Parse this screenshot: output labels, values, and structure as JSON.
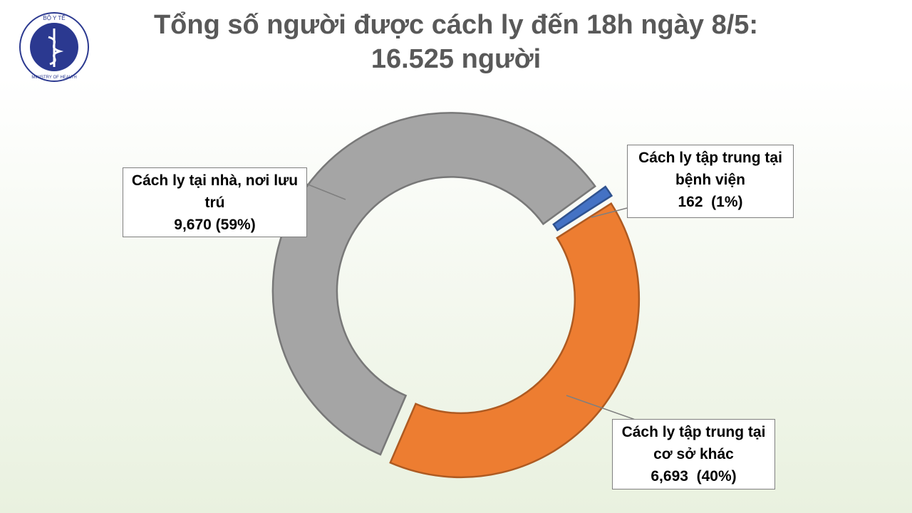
{
  "logo": {
    "top_text": "BỘ Y TẾ",
    "bottom_text": "MINISTRY OF HEALTH"
  },
  "chart_data": {
    "type": "donut",
    "title": "Tổng số người được cách ly đến 18h ngày 8/5:",
    "subtitle": "16.525 người",
    "categories": [
      "Cách ly tập trung tại bệnh viện",
      "Cách ly tập trung tại cơ sở khác",
      "Cách ly tại nhà, nơi lưu trú"
    ],
    "values": [
      162,
      6693,
      9670
    ],
    "value_labels": [
      "162  (1%)",
      "6,693  (40%)",
      "9,670 (59%)"
    ],
    "colors": [
      "#4472c4",
      "#ed7d31",
      "#a5a5a5"
    ]
  }
}
